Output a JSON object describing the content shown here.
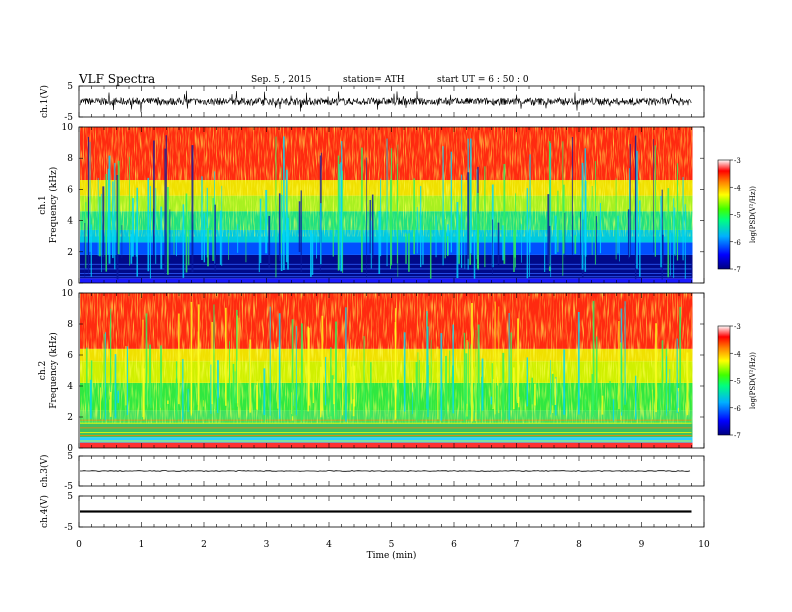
{
  "header": {
    "title": "VLF  Spectra",
    "date": "Sep. 5  , 2015",
    "station": "station= ATH",
    "start": "start  UT  =    6  : 50 : 0"
  },
  "chart_data": [
    {
      "type": "line",
      "panel": "ch1-waveform",
      "ylabel": "ch.1(V)",
      "ylim": [
        -5,
        5
      ],
      "yticks": [
        "5",
        "-5"
      ],
      "xlim": [
        0,
        10
      ],
      "trace": "noisy broadband waveform, amplitude about ±1.5 V"
    },
    {
      "type": "heatmap",
      "panel": "ch1-spectrogram",
      "ylabel_top": "ch.1",
      "ylabel": "Frequency  (kHz)",
      "ylim": [
        0,
        10
      ],
      "yticks": [
        "0",
        "2",
        "4",
        "6",
        "8",
        "10"
      ],
      "xlim": [
        0,
        10
      ],
      "data_end_min": 9.8,
      "colorbar": {
        "label": "log(PSD(V²/Hz))",
        "range": [
          -7,
          -3
        ],
        "ticks": [
          "-3",
          "-4",
          "-5",
          "-6",
          "-7"
        ]
      }
    },
    {
      "type": "heatmap",
      "panel": "ch2-spectrogram",
      "ylabel_top": "ch.2",
      "ylabel": "Frequency  (kHz)",
      "ylim": [
        0,
        10
      ],
      "yticks": [
        "0",
        "2",
        "4",
        "6",
        "8",
        "10"
      ],
      "xlim": [
        0,
        10
      ],
      "data_end_min": 9.8,
      "colorbar": {
        "label": "log(PSD(V²/Hz))",
        "range": [
          -7,
          -3
        ],
        "ticks": [
          "-3",
          "-4",
          "-5",
          "-6",
          "-7"
        ]
      }
    },
    {
      "type": "line",
      "panel": "ch3-waveform",
      "ylabel": "ch.3(V)",
      "ylim": [
        -5,
        5
      ],
      "yticks": [
        "5",
        "-5"
      ],
      "xlim": [
        0,
        10
      ],
      "trace": "nearly flat near 0 V"
    },
    {
      "type": "line",
      "panel": "ch4-waveform",
      "ylabel": "ch.4(V)",
      "ylim": [
        -5,
        5
      ],
      "yticks": [
        "5",
        "-5"
      ],
      "xlim": [
        0,
        10
      ],
      "xlabel": "Time  (min)",
      "xticks": [
        "0",
        "1",
        "2",
        "3",
        "4",
        "5",
        "6",
        "7",
        "8",
        "9",
        "10"
      ],
      "trace": "thick flat band near 0 V"
    }
  ]
}
